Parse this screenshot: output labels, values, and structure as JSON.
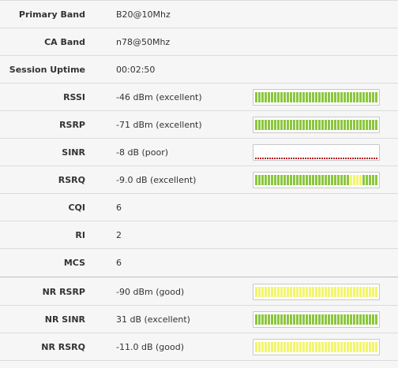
{
  "colors": {
    "good_bar": "#8cc63f",
    "fair_bar": "#f3f56e",
    "poor_line": "#b22222",
    "bar_gap": "#ffffff"
  },
  "rows": [
    {
      "label": "Primary Band",
      "value": "B20@10Mhz"
    },
    {
      "label": "CA Band",
      "value": "n78@50Mhz"
    },
    {
      "label": "Session Uptime",
      "value": "00:02:50"
    },
    {
      "label": "RSSI",
      "value": "-46 dBm (excellent)",
      "meter": {
        "level": 1.0,
        "style": "green"
      }
    },
    {
      "label": "RSRP",
      "value": "-71 dBm (excellent)",
      "meter": {
        "level": 1.0,
        "style": "green"
      }
    },
    {
      "label": "SINR",
      "value": "-8 dB (poor)",
      "meter": {
        "level": 0.0,
        "style": "poor"
      }
    },
    {
      "label": "RSRQ",
      "value": "-9.0 dB (excellent)",
      "meter": {
        "level": 1.0,
        "style": "mixed",
        "yellow_from": 0.75,
        "yellow_to": 0.86
      }
    },
    {
      "label": "CQI",
      "value": "6"
    },
    {
      "label": "RI",
      "value": "2"
    },
    {
      "label": "MCS",
      "value": "6"
    },
    {
      "label": "NR RSRP",
      "value": "-90 dBm (good)",
      "meter": {
        "level": 1.0,
        "style": "yellow"
      }
    },
    {
      "label": "NR SINR",
      "value": "31 dB (excellent)",
      "meter": {
        "level": 1.0,
        "style": "green"
      }
    },
    {
      "label": "NR RSRQ",
      "value": "-11.0 dB (good)",
      "meter": {
        "level": 1.0,
        "style": "yellow"
      }
    }
  ]
}
